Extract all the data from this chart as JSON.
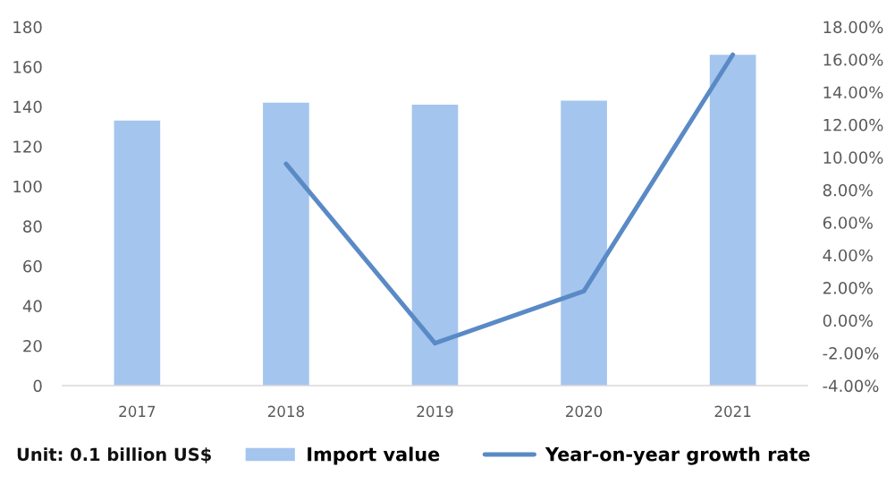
{
  "chart_data": {
    "type": "bar",
    "categories": [
      "2017",
      "2018",
      "2019",
      "2020",
      "2021"
    ],
    "series": [
      {
        "name": "Import value",
        "color": "#a4c5ee",
        "values": [
          133,
          142,
          141,
          143,
          166
        ]
      },
      {
        "name": "Year-on-year growth rate",
        "type": "line",
        "axis": "y2",
        "color": "#5a8ac6",
        "values": [
          null,
          9.6,
          -1.4,
          1.8,
          16.3
        ]
      }
    ],
    "ylim": [
      0,
      180
    ],
    "yticks": [
      0,
      20,
      40,
      60,
      80,
      100,
      120,
      140,
      160,
      180
    ],
    "y2lim": [
      -4,
      18
    ],
    "y2ticks": [
      {
        "value": -4,
        "label": "-4.00%"
      },
      {
        "value": -2,
        "label": "-2.00%"
      },
      {
        "value": 0,
        "label": "0.00%"
      },
      {
        "value": 2,
        "label": "2.00%"
      },
      {
        "value": 4,
        "label": "4.00%"
      },
      {
        "value": 6,
        "label": "6.00%"
      },
      {
        "value": 8,
        "label": "8.00%"
      },
      {
        "value": 10,
        "label": "10.00%"
      },
      {
        "value": 12,
        "label": "12.00%"
      },
      {
        "value": 14,
        "label": "14.00%"
      },
      {
        "value": 16,
        "label": "16.00%"
      },
      {
        "value": 18,
        "label": "18.00%"
      }
    ],
    "annotations": [
      "Unit: 0.1 billion US$"
    ],
    "legend": "bottom",
    "marker": "none",
    "line_style": "solid"
  }
}
